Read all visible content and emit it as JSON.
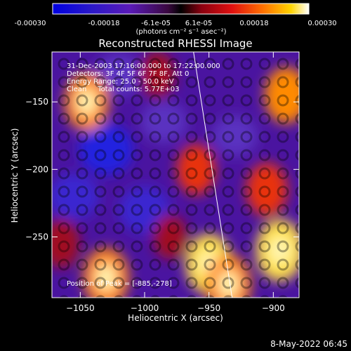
{
  "chart_data": {
    "type": "heatmap",
    "title": "Reconstructed RHESSI Image",
    "xlabel": "Heliocentric X (arcsec)",
    "ylabel": "Heliocentric Y (arcsec)",
    "xlim": [
      -1072,
      -880
    ],
    "ylim": [
      -295,
      -113
    ],
    "xticks": [
      -1050,
      -1000,
      -950,
      -900
    ],
    "yticks": [
      -150,
      -200,
      -250
    ],
    "colorbar": {
      "range": [
        -0.0003,
        0.0003
      ],
      "ticks": [
        "-0.00030",
        "-0.00018",
        "-6.1e-05",
        "6.1e-05",
        "0.00018",
        "0.00030"
      ],
      "units": "(photons cm⁻² s⁻¹ asec⁻²)",
      "colors": [
        "#0000e0",
        "#3a10c0",
        "#6a1ab0",
        "#8a0030",
        "#e01010",
        "#ff7000",
        "#ffd400",
        "#ffffff"
      ]
    },
    "annotations": {
      "time": "31-Dec-2003 17:16:00.000 to 17:22:00.000",
      "detectors": "Detectors: 3F 4F 5F 6F 7F 8F, Att 0",
      "energy": "Energy Range: 25.0 - 50.0 keV",
      "clean": "Clean     Total counts: 5.77E+03",
      "peak": "Position of Peak = [-885,-278]"
    },
    "limb_line": {
      "x": [
        -962,
        -932
      ],
      "y": [
        -113,
        -295
      ]
    },
    "hot_regions": [
      {
        "x": -1045,
        "y": -150,
        "level": 0.85
      },
      {
        "x": -1030,
        "y": -280,
        "level": 0.9
      },
      {
        "x": -1065,
        "y": -255,
        "level": 0.55
      },
      {
        "x": -950,
        "y": -270,
        "level": 0.95
      },
      {
        "x": -935,
        "y": -285,
        "level": 0.9
      },
      {
        "x": -895,
        "y": -260,
        "level": 1.0
      },
      {
        "x": -890,
        "y": -145,
        "level": 0.8
      },
      {
        "x": -905,
        "y": -215,
        "level": 0.7
      },
      {
        "x": -960,
        "y": -200,
        "level": 0.6
      },
      {
        "x": -990,
        "y": -130,
        "level": 0.45
      },
      {
        "x": -980,
        "y": -250,
        "level": 0.4
      }
    ],
    "cold_regions": [
      {
        "x": -1030,
        "y": -185,
        "level": 0.9
      },
      {
        "x": -1000,
        "y": -230,
        "level": 0.75
      },
      {
        "x": -1020,
        "y": -130,
        "level": 0.6
      },
      {
        "x": -1055,
        "y": -220,
        "level": 0.7
      },
      {
        "x": -930,
        "y": -175,
        "level": 0.5
      },
      {
        "x": -985,
        "y": -165,
        "level": 0.55
      }
    ]
  },
  "footer": {
    "timestamp": "8-May-2022 06:45"
  }
}
